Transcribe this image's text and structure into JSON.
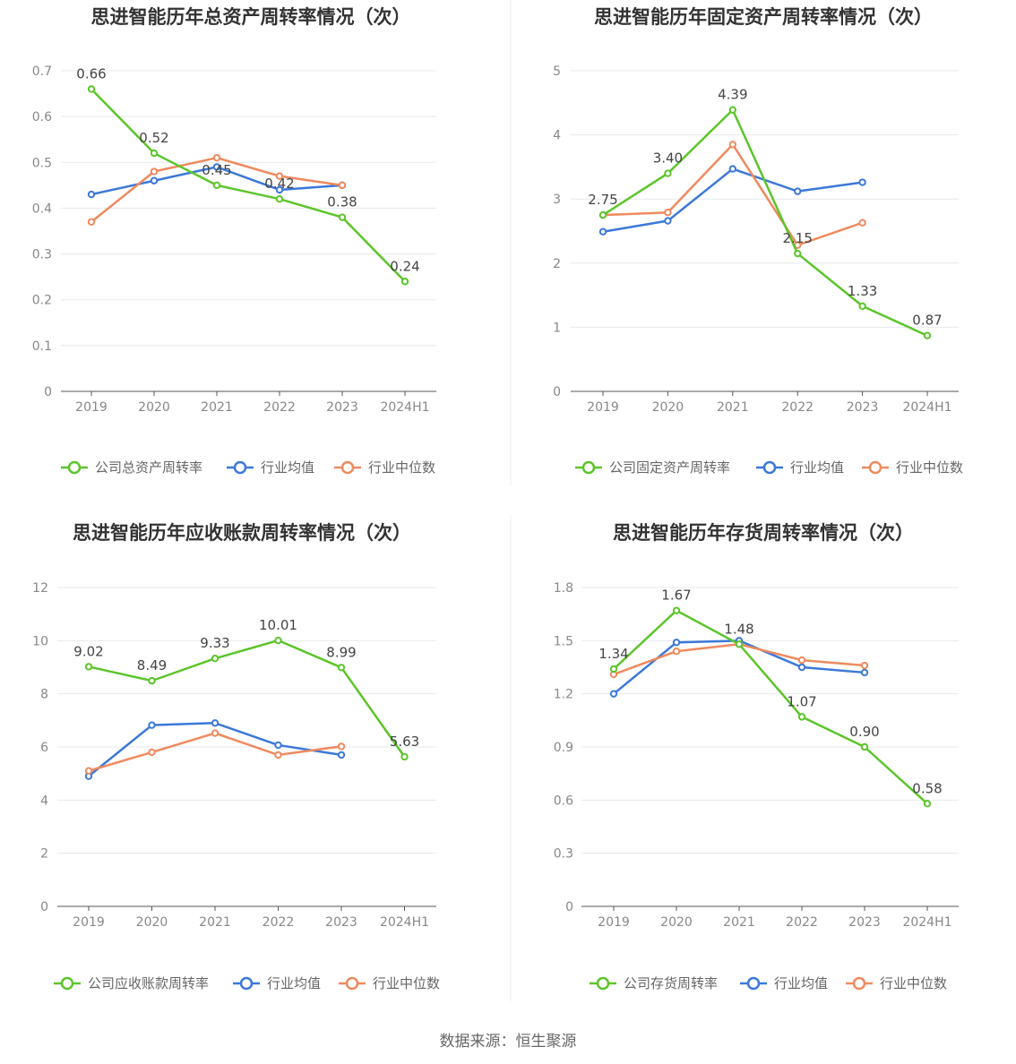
{
  "source": "数据来源：恒生聚源",
  "colors": {
    "company": "#5cc52a",
    "avg": "#3b78d8",
    "median": "#ee8a5e",
    "grid": "#e6e8ee",
    "axis": "#555555"
  },
  "chart_data": [
    {
      "type": "line",
      "title": "思进智能历年总资产周转率情况（次）",
      "categories": [
        "2019",
        "2020",
        "2021",
        "2022",
        "2023",
        "2024H1"
      ],
      "ylim": [
        0,
        0.7
      ],
      "yticks": [
        "0",
        "0.1",
        "0.2",
        "0.3",
        "0.4",
        "0.5",
        "0.6",
        "0.7"
      ],
      "grid": true,
      "legend_position": "bottom",
      "series": [
        {
          "name": "公司总资产周转率",
          "role": "company",
          "values": [
            0.66,
            0.52,
            0.45,
            0.42,
            0.38,
            0.24
          ],
          "labels": [
            "0.66",
            "0.52",
            "0.45",
            "0.42",
            "0.38",
            "0.24"
          ]
        },
        {
          "name": "行业均值",
          "role": "avg",
          "values": [
            0.43,
            0.46,
            0.49,
            0.44,
            0.45,
            null
          ]
        },
        {
          "name": "行业中位数",
          "role": "median",
          "values": [
            0.37,
            0.48,
            0.51,
            0.47,
            0.45,
            null
          ]
        }
      ]
    },
    {
      "type": "line",
      "title": "思进智能历年固定资产周转率情况（次）",
      "categories": [
        "2019",
        "2020",
        "2021",
        "2022",
        "2023",
        "2024H1"
      ],
      "ylim": [
        0,
        5
      ],
      "yticks": [
        "0",
        "1",
        "2",
        "3",
        "4",
        "5"
      ],
      "grid": true,
      "legend_position": "bottom",
      "series": [
        {
          "name": "公司固定资产周转率",
          "role": "company",
          "values": [
            2.75,
            3.4,
            4.39,
            2.15,
            1.33,
            0.87
          ],
          "labels": [
            "2.75",
            "3.40",
            "4.39",
            "2.15",
            "1.33",
            "0.87"
          ]
        },
        {
          "name": "行业均值",
          "role": "avg",
          "values": [
            2.49,
            2.66,
            3.47,
            3.12,
            3.26,
            null
          ]
        },
        {
          "name": "行业中位数",
          "role": "median",
          "values": [
            2.75,
            2.79,
            3.85,
            2.28,
            2.63,
            null
          ]
        }
      ]
    },
    {
      "type": "line",
      "title": "思进智能历年应收账款周转率情况（次）",
      "categories": [
        "2019",
        "2020",
        "2021",
        "2022",
        "2023",
        "2024H1"
      ],
      "ylim": [
        0,
        12
      ],
      "yticks": [
        "0",
        "2",
        "4",
        "6",
        "8",
        "10",
        "12"
      ],
      "grid": true,
      "legend_position": "bottom",
      "series": [
        {
          "name": "公司应收账款周转率",
          "role": "company",
          "values": [
            9.02,
            8.49,
            9.33,
            10.01,
            8.99,
            5.63
          ],
          "labels": [
            "9.02",
            "8.49",
            "9.33",
            "10.01",
            "8.99",
            "5.63"
          ]
        },
        {
          "name": "行业均值",
          "role": "avg",
          "values": [
            4.9,
            6.82,
            6.9,
            6.07,
            5.7,
            null
          ]
        },
        {
          "name": "行业中位数",
          "role": "median",
          "values": [
            5.1,
            5.8,
            6.52,
            5.7,
            6.02,
            null
          ]
        }
      ]
    },
    {
      "type": "line",
      "title": "思进智能历年存货周转率情况（次）",
      "categories": [
        "2019",
        "2020",
        "2021",
        "2022",
        "2023",
        "2024H1"
      ],
      "ylim": [
        0,
        1.8
      ],
      "yticks": [
        "0",
        "0.3",
        "0.6",
        "0.9",
        "1.2",
        "1.5",
        "1.8"
      ],
      "grid": true,
      "legend_position": "bottom",
      "series": [
        {
          "name": "公司存货周转率",
          "role": "company",
          "values": [
            1.34,
            1.67,
            1.48,
            1.07,
            0.9,
            0.58
          ],
          "labels": [
            "1.34",
            "1.67",
            "1.48",
            "1.07",
            "0.90",
            "0.58"
          ]
        },
        {
          "name": "行业均值",
          "role": "avg",
          "values": [
            1.2,
            1.49,
            1.5,
            1.35,
            1.32,
            null
          ]
        },
        {
          "name": "行业中位数",
          "role": "median",
          "values": [
            1.31,
            1.44,
            1.48,
            1.39,
            1.36,
            null
          ]
        }
      ]
    }
  ]
}
